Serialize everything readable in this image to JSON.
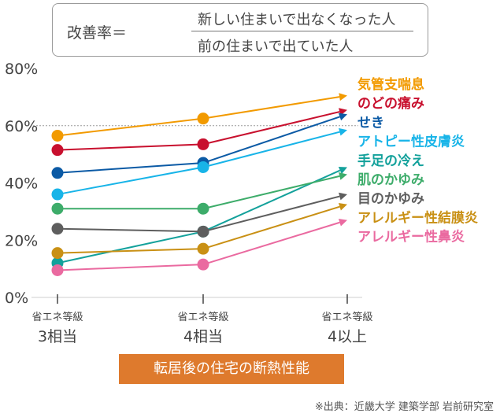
{
  "formula": {
    "label": "改善率＝",
    "numerator": "新しい住まいで出なくなった人",
    "denominator": "前の住まいで出ていた人"
  },
  "source": "※出典：近畿大学 建築学部 岩前研究室",
  "chart_data": {
    "type": "line",
    "categories": [
      {
        "line1": "省エネ等級",
        "line2": "3相当"
      },
      {
        "line1": "省エネ等級",
        "line2": "4相当"
      },
      {
        "line1": "省エネ等級",
        "line2": "4以上"
      }
    ],
    "xlabel": "転居後の住宅の断熱性能",
    "ylim": [
      0,
      80
    ],
    "yticks": [
      "0%",
      "20%",
      "40%",
      "60%",
      "80%"
    ],
    "reference_line": 60,
    "series": [
      {
        "name": "気管支喘息",
        "color": "#f29a00",
        "values": [
          56.5,
          62.5,
          70.5
        ]
      },
      {
        "name": "のどの痛み",
        "color": "#c8102e",
        "values": [
          51.5,
          53.5,
          65.5
        ]
      },
      {
        "name": "せき",
        "color": "#0b5aa5",
        "values": [
          43.5,
          47.0,
          64.0
        ]
      },
      {
        "name": "アトピー性皮膚炎",
        "color": "#18b4e8",
        "values": [
          36.0,
          45.5,
          58.5
        ]
      },
      {
        "name": "手足の冷え",
        "color": "#13a19b",
        "values": [
          12.0,
          23.0,
          45.5
        ]
      },
      {
        "name": "肌のかゆみ",
        "color": "#3dac6a",
        "values": [
          31.0,
          31.0,
          43.0
        ]
      },
      {
        "name": "目のかゆみ",
        "color": "#5e5e5e",
        "values": [
          24.0,
          23.0,
          36.0
        ]
      },
      {
        "name": "アレルギー性結膜炎",
        "color": "#c99014",
        "values": [
          15.5,
          17.0,
          32.5
        ]
      },
      {
        "name": "アレルギー性鼻炎",
        "color": "#ea6aa0",
        "values": [
          9.5,
          11.5,
          27.0
        ]
      }
    ]
  }
}
